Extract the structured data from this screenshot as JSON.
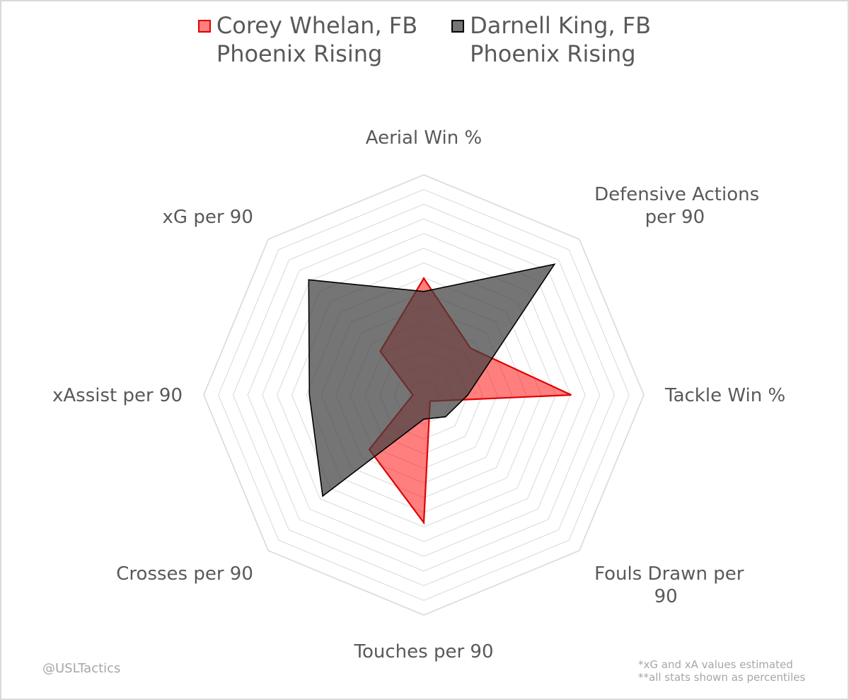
{
  "colors": {
    "grid": "#d9d9d9",
    "label": "#595959",
    "series_1_fill": "rgba(255,0,0,0.5)",
    "series_1_stroke": "#e00000",
    "series_2_fill": "rgba(64,64,64,0.72)",
    "series_2_stroke": "#000000"
  },
  "legend": {
    "items": [
      {
        "line1": "Corey Whelan, FB",
        "line2": "Phoenix Rising"
      },
      {
        "line1": "Darnell King, FB",
        "line2": "Phoenix Rising"
      }
    ]
  },
  "chart_data": {
    "type": "radar",
    "axes": [
      {
        "lines": [
          "Aerial Win %"
        ]
      },
      {
        "lines": [
          "Defensive Actions",
          "per 90"
        ]
      },
      {
        "lines": [
          "Tackle Win %"
        ]
      },
      {
        "lines": [
          "Fouls Drawn per",
          "90"
        ]
      },
      {
        "lines": [
          "Touches per 90"
        ]
      },
      {
        "lines": [
          "Crosses per 90"
        ]
      },
      {
        "lines": [
          "xAssist per 90"
        ]
      },
      {
        "lines": [
          "xG per 90"
        ]
      }
    ],
    "categories": [
      "Aerial Win %",
      "Defensive Actions per 90",
      "Tackle Win %",
      "Fouls Drawn per 90",
      "Touches per 90",
      "Crosses per 90",
      "xAssist per 90",
      "xG per 90"
    ],
    "range": [
      0,
      100
    ],
    "gridlines": 15,
    "series": [
      {
        "name": "Corey Whelan, FB Phoenix Rising",
        "values": [
          53,
          30,
          67,
          4,
          58,
          35,
          5,
          28
        ]
      },
      {
        "name": "Darnell King, FB Phoenix Rising",
        "values": [
          47,
          84,
          20,
          14,
          11,
          65,
          52,
          74
        ]
      }
    ]
  },
  "footer": {
    "credit": "@USLTactics",
    "note1": "*xG and xA values estimated",
    "note2": "**all stats shown as percentiles"
  }
}
